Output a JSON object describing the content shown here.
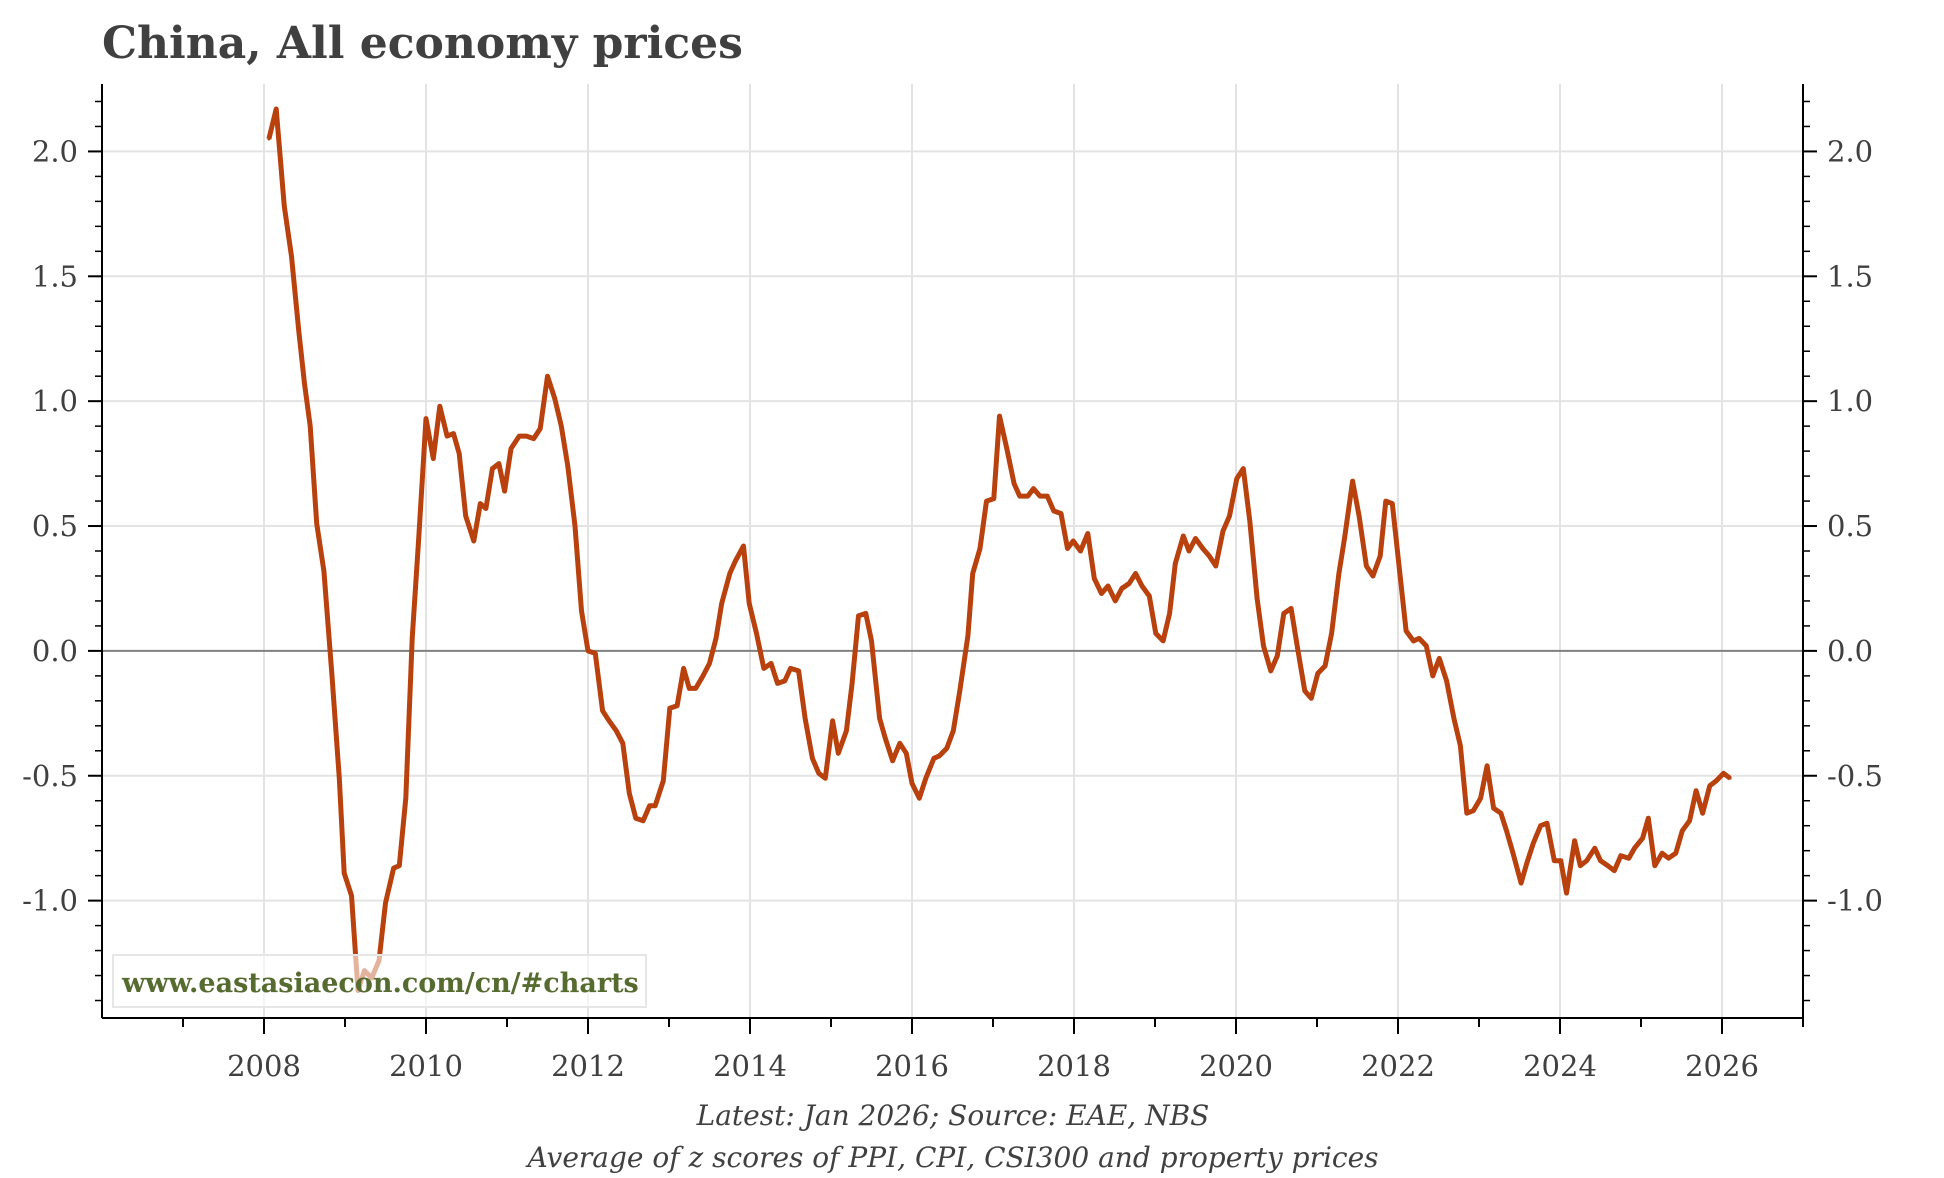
{
  "chart_data": {
    "type": "line",
    "title": "China, All economy prices",
    "footer_lines": [
      "Latest: Jan 2026; Source: EAE, NBS",
      "Average of z scores of PPI, CPI, CSI300 and property prices"
    ],
    "watermark": "www.eastasiaecon.com/cn/#charts",
    "xlim": [
      2006,
      2027
    ],
    "ylim": [
      -1.47,
      2.27
    ],
    "x_ticks": [
      2008,
      2010,
      2012,
      2014,
      2016,
      2018,
      2020,
      2022,
      2024,
      2026
    ],
    "x_tick_labels": [
      "2008",
      "2010",
      "2012",
      "2014",
      "2016",
      "2018",
      "2020",
      "2022",
      "2024",
      "2026"
    ],
    "y_ticks": [
      -1.0,
      -0.5,
      0.0,
      0.5,
      1.0,
      1.5,
      2.0
    ],
    "y_tick_labels": [
      "-1.0",
      "-0.5",
      "0.0",
      "0.5",
      "1.0",
      "1.5",
      "2.0"
    ],
    "y_axis_both_sides": true,
    "grid": true,
    "zero_line": true,
    "colors": {
      "line": "#b8410e",
      "grid": "#e3e3e3",
      "zero": "#808080",
      "watermark": "#556b2f"
    },
    "series": [
      {
        "x": [
          2008.06,
          2008.15,
          2008.25,
          2008.34,
          2008.43,
          2008.5,
          2008.57,
          2008.65,
          2008.74,
          2008.84,
          2008.93,
          2008.99,
          2009.08,
          2009.16,
          2009.24,
          2009.33,
          2009.42,
          2009.5,
          2009.6,
          2009.67,
          2009.75,
          2009.83,
          2009.91,
          2010.0,
          2010.09,
          2010.17,
          2010.26,
          2010.34,
          2010.41,
          2010.49,
          2010.59,
          2010.67,
          2010.74,
          2010.82,
          2010.9,
          2010.97,
          2011.05,
          2011.15,
          2011.24,
          2011.33,
          2011.41,
          2011.5,
          2011.59,
          2011.67,
          2011.75,
          2011.84,
          2011.92,
          2012.0,
          2012.09,
          2012.18,
          2012.26,
          2012.35,
          2012.43,
          2012.51,
          2012.59,
          2012.68,
          2012.76,
          2012.83,
          2012.93,
          2013.01,
          2013.1,
          2013.18,
          2013.25,
          2013.33,
          2013.42,
          2013.5,
          2013.58,
          2013.65,
          2013.75,
          2013.82,
          2013.92,
          2013.99,
          2014.08,
          2014.17,
          2014.26,
          2014.34,
          2014.43,
          2014.5,
          2014.6,
          2014.68,
          2014.77,
          2014.85,
          2014.93,
          2015.02,
          2015.09,
          2015.19,
          2015.26,
          2015.34,
          2015.43,
          2015.5,
          2015.6,
          2015.67,
          2015.76,
          2015.85,
          2015.93,
          2016.0,
          2016.09,
          2016.17,
          2016.27,
          2016.34,
          2016.43,
          2016.51,
          2016.59,
          2016.69,
          2016.75,
          2016.84,
          2016.92,
          2017.01,
          2017.08,
          2017.17,
          2017.26,
          2017.33,
          2017.43,
          2017.5,
          2017.58,
          2017.67,
          2017.75,
          2017.84,
          2017.92,
          2017.99,
          2018.08,
          2018.17,
          2018.25,
          2018.34,
          2018.42,
          2018.51,
          2018.59,
          2018.68,
          2018.76,
          2018.84,
          2018.93,
          2019.01,
          2019.1,
          2019.18,
          2019.25,
          2019.35,
          2019.42,
          2019.5,
          2019.59,
          2019.67,
          2019.75,
          2019.84,
          2019.92,
          2020.01,
          2020.09,
          2020.17,
          2020.26,
          2020.34,
          2020.43,
          2020.51,
          2020.59,
          2020.68,
          2020.76,
          2020.85,
          2020.93,
          2021.01,
          2021.1,
          2021.18,
          2021.27,
          2021.34,
          2021.44,
          2021.52,
          2021.61,
          2021.69,
          2021.78,
          2021.85,
          2021.93,
          2022.02,
          2022.1,
          2022.19,
          2022.26,
          2022.35,
          2022.43,
          2022.51,
          2022.6,
          2022.69,
          2022.77,
          2022.85,
          2022.93,
          2023.02,
          2023.1,
          2023.18,
          2023.27,
          2023.34,
          2023.42,
          2023.52,
          2023.59,
          2023.67,
          2023.76,
          2023.84,
          2023.93,
          2024.01,
          2024.08,
          2024.18,
          2024.25,
          2024.33,
          2024.43,
          2024.5,
          2024.59,
          2024.67,
          2024.75,
          2024.85,
          2024.92,
          2025.02,
          2025.09,
          2025.17,
          2025.26,
          2025.34,
          2025.43,
          2025.51,
          2025.6,
          2025.68,
          2025.76,
          2025.85,
          2025.93,
          2026.02,
          2026.1
        ],
        "y": [
          2.05,
          2.17,
          1.78,
          1.58,
          1.28,
          1.07,
          0.9,
          0.51,
          0.32,
          -0.1,
          -0.51,
          -0.89,
          -0.98,
          -1.36,
          -1.28,
          -1.31,
          -1.24,
          -1.01,
          -0.87,
          -0.86,
          -0.59,
          0.05,
          0.45,
          0.93,
          0.77,
          0.98,
          0.86,
          0.87,
          0.79,
          0.54,
          0.44,
          0.59,
          0.57,
          0.73,
          0.75,
          0.64,
          0.81,
          0.86,
          0.86,
          0.85,
          0.89,
          1.1,
          1.01,
          0.9,
          0.74,
          0.5,
          0.16,
          0.0,
          -0.01,
          -0.24,
          -0.28,
          -0.32,
          -0.37,
          -0.57,
          -0.67,
          -0.68,
          -0.62,
          -0.62,
          -0.52,
          -0.23,
          -0.22,
          -0.07,
          -0.15,
          -0.15,
          -0.1,
          -0.05,
          0.05,
          0.19,
          0.31,
          0.36,
          0.42,
          0.19,
          0.07,
          -0.07,
          -0.05,
          -0.13,
          -0.12,
          -0.07,
          -0.08,
          -0.27,
          -0.43,
          -0.49,
          -0.51,
          -0.28,
          -0.41,
          -0.32,
          -0.13,
          0.14,
          0.15,
          0.04,
          -0.27,
          -0.35,
          -0.44,
          -0.37,
          -0.41,
          -0.53,
          -0.59,
          -0.51,
          -0.43,
          -0.42,
          -0.39,
          -0.32,
          -0.16,
          0.06,
          0.31,
          0.41,
          0.6,
          0.61,
          0.94,
          0.81,
          0.67,
          0.62,
          0.62,
          0.65,
          0.62,
          0.62,
          0.56,
          0.55,
          0.41,
          0.44,
          0.4,
          0.47,
          0.29,
          0.23,
          0.26,
          0.2,
          0.25,
          0.27,
          0.31,
          0.26,
          0.22,
          0.07,
          0.04,
          0.15,
          0.35,
          0.46,
          0.4,
          0.45,
          0.41,
          0.38,
          0.34,
          0.48,
          0.54,
          0.69,
          0.73,
          0.52,
          0.21,
          0.02,
          -0.08,
          -0.02,
          0.15,
          0.17,
          0.01,
          -0.16,
          -0.19,
          -0.09,
          -0.06,
          0.07,
          0.31,
          0.45,
          0.68,
          0.54,
          0.34,
          0.3,
          0.38,
          0.6,
          0.59,
          0.32,
          0.08,
          0.04,
          0.05,
          0.02,
          -0.1,
          -0.03,
          -0.12,
          -0.27,
          -0.38,
          -0.65,
          -0.64,
          -0.59,
          -0.46,
          -0.63,
          -0.65,
          -0.72,
          -0.81,
          -0.93,
          -0.85,
          -0.77,
          -0.7,
          -0.69,
          -0.84,
          -0.84,
          -0.97,
          -0.76,
          -0.86,
          -0.84,
          -0.79,
          -0.84,
          -0.86,
          -0.88,
          -0.82,
          -0.83,
          -0.79,
          -0.75,
          -0.67,
          -0.86,
          -0.81,
          -0.83,
          -0.81,
          -0.72,
          -0.68,
          -0.56,
          -0.65,
          -0.54,
          -0.52,
          -0.49,
          -0.51
        ]
      }
    ]
  }
}
